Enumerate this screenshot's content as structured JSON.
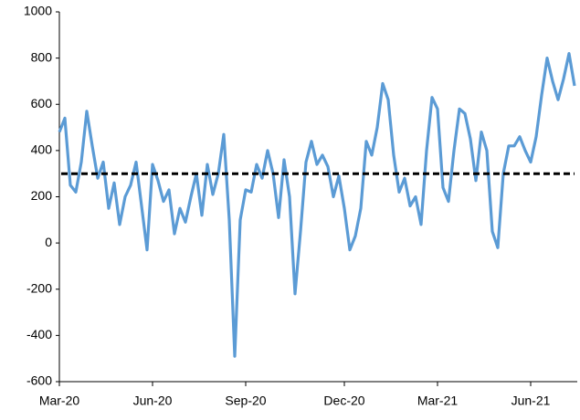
{
  "chart_data": {
    "type": "line",
    "categories": [
      "Mar-20",
      null,
      null,
      null,
      null,
      null,
      null,
      null,
      null,
      null,
      null,
      null,
      null,
      null,
      null,
      null,
      null,
      "Jun-20",
      null,
      null,
      null,
      null,
      null,
      null,
      null,
      null,
      null,
      null,
      null,
      null,
      null,
      null,
      null,
      null,
      "Sep-20",
      null,
      null,
      null,
      null,
      null,
      null,
      null,
      null,
      null,
      null,
      null,
      null,
      null,
      null,
      null,
      null,
      null,
      "Dec-20",
      null,
      null,
      null,
      null,
      null,
      null,
      null,
      null,
      null,
      null,
      null,
      null,
      null,
      null,
      null,
      null,
      "Mar-21",
      null,
      null,
      null,
      null,
      null,
      null,
      null,
      null,
      null,
      null,
      null,
      null,
      null,
      null,
      null,
      null,
      "Jun-21",
      null,
      null,
      null,
      null,
      null,
      null,
      null,
      null
    ],
    "series": [
      {
        "color": "#5b9bd5",
        "values": [
          480,
          540,
          250,
          220,
          350,
          570,
          420,
          280,
          350,
          150,
          260,
          80,
          200,
          250,
          350,
          160,
          -30,
          340,
          270,
          180,
          230,
          40,
          150,
          90,
          200,
          300,
          120,
          340,
          210,
          300,
          470,
          100,
          -490,
          100,
          230,
          220,
          340,
          280,
          400,
          300,
          110,
          360,
          200,
          -220,
          50,
          350,
          440,
          340,
          380,
          330,
          200,
          290,
          150,
          -30,
          30,
          150,
          440,
          380,
          500,
          690,
          620,
          380,
          220,
          280,
          160,
          200,
          80,
          400,
          630,
          580,
          240,
          180,
          400,
          580,
          560,
          450,
          270,
          480,
          400,
          50,
          -20,
          300,
          420,
          420,
          460,
          400,
          350,
          460,
          640,
          800,
          700,
          620,
          710,
          820,
          680
        ]
      }
    ],
    "reference_line": {
      "value": 300,
      "color": "#000000"
    },
    "ylim": [
      -600,
      1000
    ],
    "yticks": [
      -600,
      -400,
      -200,
      0,
      200,
      400,
      600,
      800,
      1000
    ],
    "grid": false
  }
}
